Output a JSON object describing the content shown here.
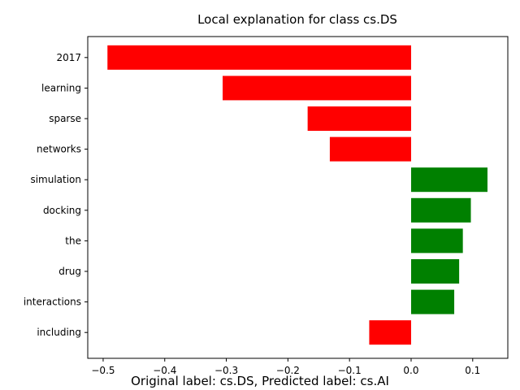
{
  "chart_data": {
    "type": "bar",
    "orientation": "horizontal",
    "title": "Local explanation for class cs.DS",
    "xlabel": "",
    "ylabel": "",
    "caption": "Original label: cs.DS, Predicted label: cs.AI",
    "categories": [
      "2017",
      "learning",
      "sparse",
      "networks",
      "simulation",
      "docking",
      "the",
      "drug",
      "interactions",
      "including"
    ],
    "values": [
      -0.493,
      -0.306,
      -0.168,
      -0.132,
      0.124,
      0.097,
      0.084,
      0.078,
      0.07,
      -0.068
    ],
    "xlim": [
      -0.525,
      0.157
    ],
    "xticks": [
      -0.5,
      -0.4,
      -0.3,
      -0.2,
      -0.1,
      0.0,
      0.1
    ],
    "xtick_labels": [
      "−0.5",
      "−0.4",
      "−0.3",
      "−0.2",
      "−0.1",
      "0.0",
      "0.1"
    ],
    "grid": false,
    "legend": "none",
    "colors": {
      "positive": "#008000",
      "negative": "#ff0000"
    }
  }
}
